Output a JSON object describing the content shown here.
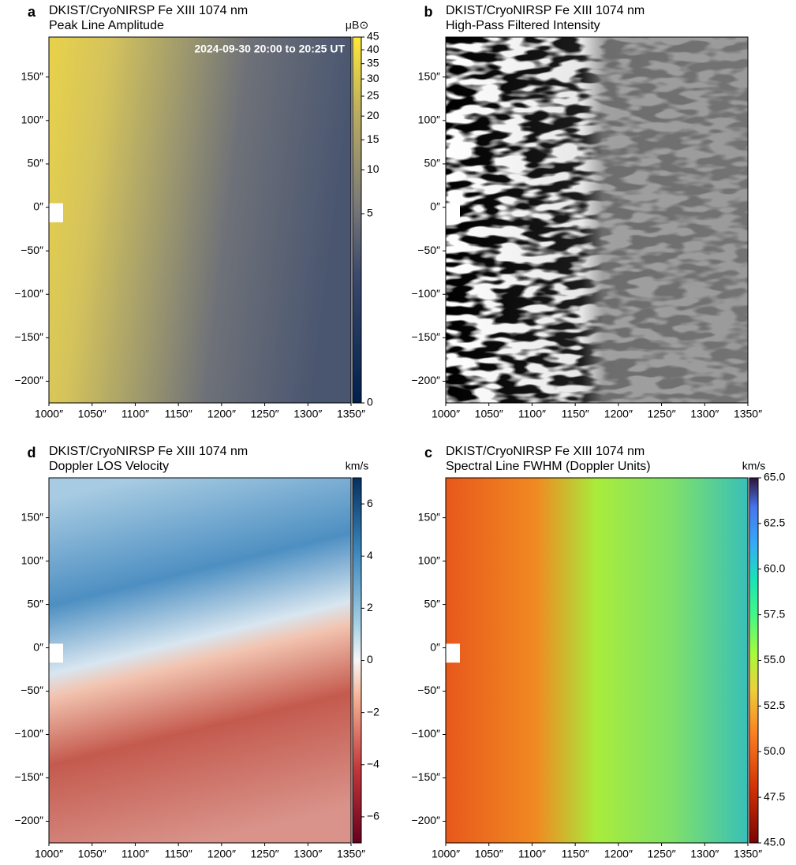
{
  "chart_data": [
    {
      "type": "image",
      "panel": "a",
      "title": "DKIST/CryoNIRSP Fe XIII 1074 nm",
      "subtitle": "Peak Line Amplitude",
      "annotation": "2024-09-30 20:00 to 20:25 UT",
      "xlim": [
        1000,
        1350
      ],
      "ylim": [
        -225,
        196
      ],
      "xticks": [
        {
          "value": 1000,
          "label": "1000″"
        },
        {
          "value": 1050,
          "label": "1050″"
        },
        {
          "value": 1100,
          "label": "1100″"
        },
        {
          "value": 1150,
          "label": "1150″"
        },
        {
          "value": 1200,
          "label": "1200″"
        },
        {
          "value": 1250,
          "label": "1250″"
        },
        {
          "value": 1300,
          "label": "1300″"
        },
        {
          "value": 1350,
          "label": "1350″"
        }
      ],
      "yticks": [
        {
          "value": 150,
          "label": "150″"
        },
        {
          "value": 100,
          "label": "100″"
        },
        {
          "value": 50,
          "label": "50″"
        },
        {
          "value": 0,
          "label": "0″"
        },
        {
          "value": -50,
          "label": "−50″"
        },
        {
          "value": -100,
          "label": "−100″"
        },
        {
          "value": -150,
          "label": "−150″"
        },
        {
          "value": -200,
          "label": "−200″"
        }
      ],
      "colorbar": {
        "label": "μB⊙",
        "lim": [
          0,
          45
        ],
        "scale": "power",
        "gamma": 0.3,
        "ticks": [
          0,
          5,
          10,
          15,
          20,
          25,
          30,
          35,
          40,
          45
        ]
      }
    },
    {
      "type": "image",
      "panel": "b",
      "title": "DKIST/CryoNIRSP Fe XIII 1074 nm",
      "subtitle": "High-Pass Filtered Intensity",
      "xlim": [
        1000,
        1350
      ],
      "ylim": [
        -225,
        196
      ],
      "xticks": [
        {
          "value": 1000,
          "label": "1000″"
        },
        {
          "value": 1050,
          "label": "1050″"
        },
        {
          "value": 1100,
          "label": "1100″"
        },
        {
          "value": 1150,
          "label": "1150″"
        },
        {
          "value": 1200,
          "label": "1200″"
        },
        {
          "value": 1250,
          "label": "1250″"
        },
        {
          "value": 1300,
          "label": "1300″"
        },
        {
          "value": 1350,
          "label": "1350″"
        }
      ],
      "yticks": [
        {
          "value": 150,
          "label": "150″"
        },
        {
          "value": 100,
          "label": "100″"
        },
        {
          "value": 50,
          "label": "50″"
        },
        {
          "value": 0,
          "label": "0″"
        },
        {
          "value": -50,
          "label": "−50″"
        },
        {
          "value": -100,
          "label": "−100″"
        },
        {
          "value": -150,
          "label": "−150″"
        },
        {
          "value": -200,
          "label": "−200″"
        }
      ]
    },
    {
      "type": "image",
      "panel": "d",
      "title": "DKIST/CryoNIRSP Fe XIII 1074 nm",
      "subtitle": "Doppler LOS Velocity",
      "xlim": [
        1000,
        1350
      ],
      "ylim": [
        -225,
        196
      ],
      "xticks": [
        {
          "value": 1000,
          "label": "1000″"
        },
        {
          "value": 1050,
          "label": "1050″"
        },
        {
          "value": 1100,
          "label": "1100″"
        },
        {
          "value": 1150,
          "label": "1150″"
        },
        {
          "value": 1200,
          "label": "1200″"
        },
        {
          "value": 1250,
          "label": "1250″"
        },
        {
          "value": 1300,
          "label": "1300″"
        },
        {
          "value": 1350,
          "label": "1350″"
        }
      ],
      "yticks": [
        {
          "value": 150,
          "label": "150″"
        },
        {
          "value": 100,
          "label": "100″"
        },
        {
          "value": 50,
          "label": "50″"
        },
        {
          "value": 0,
          "label": "0″"
        },
        {
          "value": -50,
          "label": "−50″"
        },
        {
          "value": -100,
          "label": "−100″"
        },
        {
          "value": -150,
          "label": "−150″"
        },
        {
          "value": -200,
          "label": "−200″"
        }
      ],
      "colorbar": {
        "label": "km/s",
        "lim": [
          -7,
          7
        ],
        "scale": "linear",
        "ticks": [
          6,
          4,
          2,
          0,
          {
            "value": -2,
            "label": "−2"
          },
          {
            "value": -4,
            "label": "−4"
          },
          {
            "value": -6,
            "label": "−6"
          }
        ]
      }
    },
    {
      "type": "image",
      "panel": "c",
      "title": "DKIST/CryoNIRSP Fe XIII 1074 nm",
      "subtitle": "Spectral Line FWHM (Doppler Units)",
      "xlim": [
        1000,
        1350
      ],
      "ylim": [
        -225,
        196
      ],
      "xticks": [
        {
          "value": 1000,
          "label": "1000″"
        },
        {
          "value": 1050,
          "label": "1050″"
        },
        {
          "value": 1100,
          "label": "1100″"
        },
        {
          "value": 1150,
          "label": "1150″"
        },
        {
          "value": 1200,
          "label": "1200″"
        },
        {
          "value": 1250,
          "label": "1250″"
        },
        {
          "value": 1300,
          "label": "1300″"
        },
        {
          "value": 1350,
          "label": "1350″"
        }
      ],
      "yticks": [
        {
          "value": 150,
          "label": "150″"
        },
        {
          "value": 100,
          "label": "100″"
        },
        {
          "value": 50,
          "label": "50″"
        },
        {
          "value": 0,
          "label": "0″"
        },
        {
          "value": -50,
          "label": "−50″"
        },
        {
          "value": -100,
          "label": "−100″"
        },
        {
          "value": -150,
          "label": "−150″"
        },
        {
          "value": -200,
          "label": "−200″"
        }
      ],
      "colorbar": {
        "label": "km/s",
        "lim": [
          45,
          65
        ],
        "scale": "linear",
        "ticks": [
          {
            "value": 65,
            "label": "65.0"
          },
          {
            "value": 62.5,
            "label": "62.5"
          },
          {
            "value": 60,
            "label": "60.0"
          },
          {
            "value": 57.5,
            "label": "57.5"
          },
          {
            "value": 55,
            "label": "55.0"
          },
          {
            "value": 52.5,
            "label": "52.5"
          },
          {
            "value": 50,
            "label": "50.0"
          },
          {
            "value": 47.5,
            "label": "47.5"
          },
          {
            "value": 45,
            "label": "45.0"
          }
        ]
      }
    }
  ]
}
